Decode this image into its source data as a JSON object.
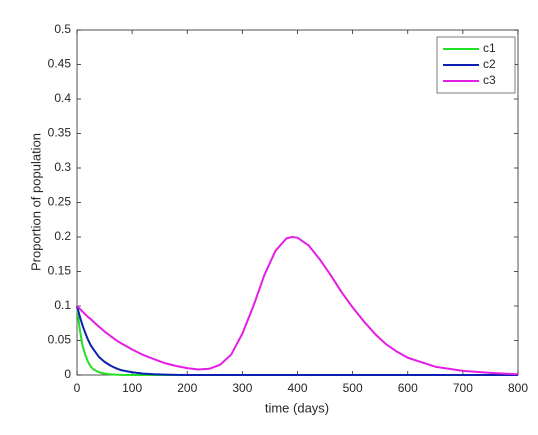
{
  "chart_data": {
    "type": "line",
    "xlabel": "time (days)",
    "ylabel": "Proportion of population",
    "x": [
      0,
      5,
      10,
      15,
      20,
      25,
      30,
      40,
      50,
      60,
      70,
      80,
      100,
      120,
      140,
      160,
      180,
      200,
      220,
      240,
      260,
      280,
      300,
      320,
      340,
      360,
      380,
      390,
      400,
      420,
      440,
      460,
      480,
      500,
      520,
      540,
      560,
      580,
      600,
      650,
      700,
      750,
      800
    ],
    "series": [
      {
        "name": "c1",
        "color": "#22e022",
        "values": [
          0.1,
          0.066,
          0.043,
          0.029,
          0.019,
          0.012,
          0.008,
          0.004,
          0.002,
          0.001,
          0.0005,
          0.0002,
          0,
          0,
          0,
          0,
          0,
          0,
          0,
          0,
          0,
          0,
          0,
          0,
          0,
          0,
          0,
          0,
          0,
          0,
          0,
          0,
          0,
          0,
          0,
          0,
          0,
          0,
          0,
          0,
          0,
          0,
          0
        ]
      },
      {
        "name": "c2",
        "color": "#0d1fb0",
        "values": [
          0.1,
          0.085,
          0.072,
          0.061,
          0.051,
          0.043,
          0.037,
          0.026,
          0.019,
          0.014,
          0.01,
          0.007,
          0.004,
          0.002,
          0.001,
          0.0005,
          0.0002,
          0,
          0,
          0,
          0,
          0,
          0,
          0,
          0,
          0,
          0,
          0,
          0,
          0,
          0,
          0,
          0,
          0,
          0,
          0,
          0,
          0,
          0,
          0,
          0,
          0,
          0
        ]
      },
      {
        "name": "c3",
        "color": "#e41ee4",
        "values": [
          0.1,
          0.096,
          0.092,
          0.088,
          0.084,
          0.081,
          0.077,
          0.07,
          0.063,
          0.057,
          0.051,
          0.046,
          0.037,
          0.029,
          0.023,
          0.017,
          0.013,
          0.01,
          0.008,
          0.009,
          0.015,
          0.03,
          0.06,
          0.1,
          0.145,
          0.18,
          0.198,
          0.2,
          0.199,
          0.188,
          0.168,
          0.145,
          0.12,
          0.098,
          0.078,
          0.06,
          0.045,
          0.034,
          0.025,
          0.012,
          0.006,
          0.003,
          0.001
        ]
      }
    ],
    "xlim": [
      0,
      800
    ],
    "xticks": [
      0,
      100,
      200,
      300,
      400,
      500,
      600,
      700,
      800
    ],
    "ylim": [
      0,
      0.5
    ],
    "yticks": [
      0,
      0.05,
      0.1,
      0.15,
      0.2,
      0.25,
      0.3,
      0.35,
      0.4,
      0.45,
      0.5
    ],
    "legend": "upper right",
    "grid": false
  }
}
